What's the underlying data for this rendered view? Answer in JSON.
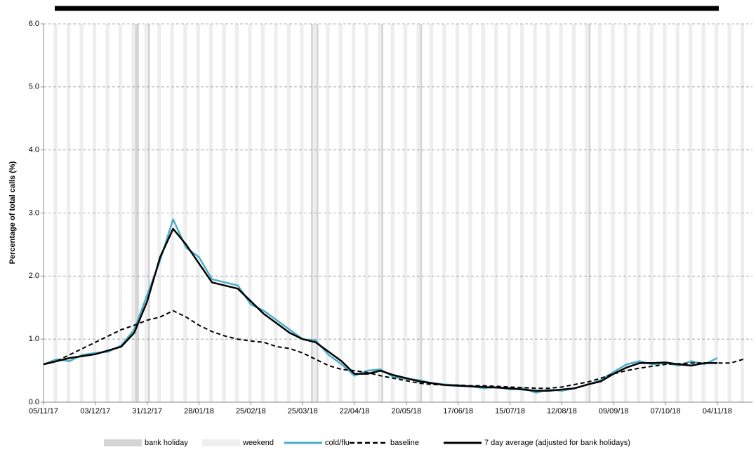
{
  "chart_data": {
    "type": "line",
    "y_label": "Percentage of total calls (%)",
    "x": [
      "05/11/17",
      "12/11/17",
      "19/11/17",
      "26/11/17",
      "03/12/17",
      "10/12/17",
      "17/12/17",
      "24/12/17",
      "31/12/17",
      "07/01/18",
      "14/01/18",
      "21/01/18",
      "28/01/18",
      "04/02/18",
      "11/02/18",
      "18/02/18",
      "25/02/18",
      "04/03/18",
      "11/03/18",
      "18/03/18",
      "25/03/18",
      "01/04/18",
      "08/04/18",
      "15/04/18",
      "22/04/18",
      "29/04/18",
      "06/05/18",
      "13/05/18",
      "20/05/18",
      "27/05/18",
      "03/06/18",
      "10/06/18",
      "17/06/18",
      "24/06/18",
      "01/07/18",
      "08/07/18",
      "15/07/18",
      "22/07/18",
      "29/07/18",
      "05/08/18",
      "12/08/18",
      "19/08/18",
      "26/08/18",
      "02/09/18",
      "09/09/18",
      "16/09/18",
      "23/09/18",
      "30/09/18",
      "07/10/18",
      "14/10/18",
      "21/10/18",
      "28/10/18",
      "04/11/18",
      "11/11/18",
      "18/11/18"
    ],
    "xlim": [
      "05/11/17",
      "23/11/18"
    ],
    "xticks": [
      "05/11/17",
      "03/12/17",
      "31/12/17",
      "28/01/18",
      "25/02/18",
      "25/03/18",
      "22/04/18",
      "20/05/18",
      "17/06/18",
      "15/07/18",
      "12/08/18",
      "09/09/18",
      "07/10/18",
      "04/11/18"
    ],
    "ylim": [
      0,
      6
    ],
    "yticks": [
      {
        "value": 0,
        "label": "0.0"
      },
      {
        "value": 1,
        "label": "1.0"
      },
      {
        "value": 2,
        "label": "2.0"
      },
      {
        "value": 3,
        "label": "3.0"
      },
      {
        "value": 4,
        "label": "4.0"
      },
      {
        "value": 5,
        "label": "5.0"
      },
      {
        "value": 6,
        "label": "6.0"
      }
    ],
    "grid": true,
    "bank_holiday_label": "bank holiday",
    "bank_holiday_color": "#d4d4d4",
    "bank_holidays": [
      "25/12/17",
      "26/12/17",
      "01/01/18",
      "30/03/18",
      "02/04/18",
      "07/05/18",
      "28/05/18",
      "27/08/18"
    ],
    "weekend_label": "weekend",
    "weekend_color": "#eeeeee",
    "series": [
      {
        "name": "cold/flu",
        "color": "#4bacc6",
        "dash": false,
        "width": 2.5,
        "values": [
          0.6,
          0.68,
          0.65,
          0.75,
          0.78,
          0.8,
          0.9,
          1.15,
          1.7,
          2.25,
          2.9,
          2.45,
          2.3,
          1.95,
          1.9,
          1.85,
          1.55,
          1.45,
          1.3,
          1.15,
          1.0,
          0.98,
          0.75,
          0.6,
          0.42,
          0.5,
          0.52,
          0.4,
          0.37,
          0.35,
          0.3,
          0.28,
          0.27,
          0.25,
          0.22,
          0.24,
          0.2,
          0.22,
          0.15,
          0.2,
          0.18,
          0.22,
          0.28,
          0.35,
          0.48,
          0.6,
          0.65,
          0.6,
          0.62,
          0.58,
          0.65,
          0.6,
          0.7,
          null,
          null
        ]
      },
      {
        "name": "baseline",
        "color": "#000000",
        "dash": true,
        "width": 2,
        "values": [
          0.6,
          0.65,
          0.75,
          0.85,
          0.95,
          1.05,
          1.15,
          1.22,
          1.3,
          1.35,
          1.45,
          1.35,
          1.22,
          1.12,
          1.05,
          1.0,
          0.97,
          0.95,
          0.88,
          0.85,
          0.78,
          0.68,
          0.58,
          0.52,
          0.5,
          0.47,
          0.42,
          0.38,
          0.34,
          0.3,
          0.28,
          0.27,
          0.27,
          0.26,
          0.26,
          0.25,
          0.24,
          0.23,
          0.22,
          0.22,
          0.24,
          0.28,
          0.32,
          0.38,
          0.45,
          0.5,
          0.54,
          0.57,
          0.6,
          0.61,
          0.62,
          0.62,
          0.62,
          0.62,
          0.68
        ]
      },
      {
        "name": "7 day average (adjusted for bank holidays)",
        "color": "#000000",
        "dash": false,
        "width": 2.5,
        "values": [
          0.6,
          0.65,
          0.7,
          0.73,
          0.76,
          0.82,
          0.88,
          1.1,
          1.6,
          2.3,
          2.75,
          2.5,
          2.2,
          1.9,
          1.85,
          1.8,
          1.6,
          1.4,
          1.25,
          1.1,
          1.0,
          0.95,
          0.8,
          0.65,
          0.45,
          0.45,
          0.5,
          0.43,
          0.38,
          0.33,
          0.3,
          0.27,
          0.26,
          0.25,
          0.24,
          0.23,
          0.22,
          0.2,
          0.18,
          0.18,
          0.2,
          0.22,
          0.28,
          0.33,
          0.45,
          0.55,
          0.62,
          0.62,
          0.63,
          0.6,
          0.58,
          0.62,
          0.62,
          null,
          null
        ]
      }
    ]
  }
}
